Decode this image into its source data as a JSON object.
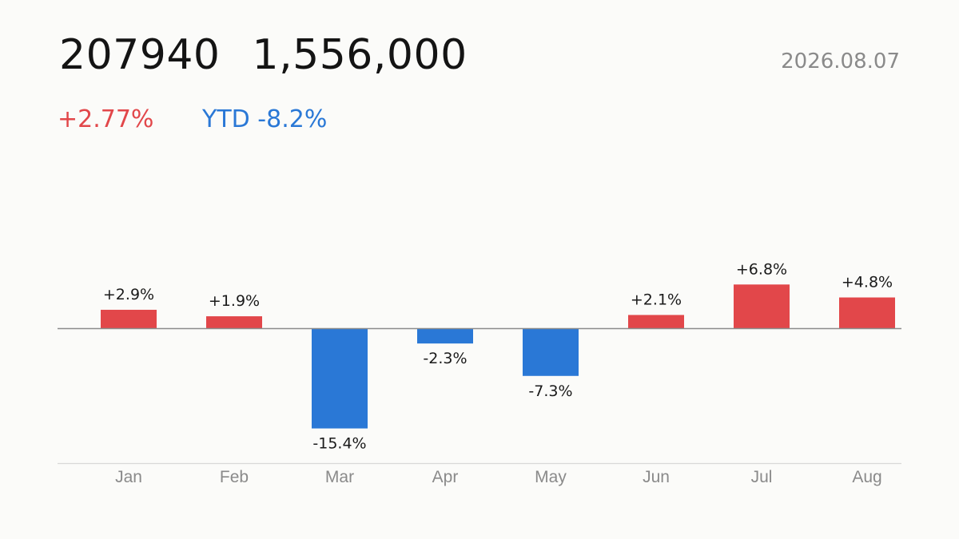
{
  "header": {
    "code": "207940",
    "price": "1,556,000",
    "date": "2026.08.07",
    "daily_change": "+2.77%",
    "ytd_change": "YTD -8.2%"
  },
  "colors": {
    "positive": "#e2474a",
    "negative": "#2a78d6",
    "zero_line": "#8c8c8c",
    "axis_line": "#d8d8d8"
  },
  "chart_data": {
    "type": "bar",
    "title": "",
    "xlabel": "",
    "ylabel": "",
    "categories": [
      "Jan",
      "Feb",
      "Mar",
      "Apr",
      "May",
      "Jun",
      "Jul",
      "Aug"
    ],
    "values": [
      2.9,
      1.9,
      -15.4,
      -2.3,
      -7.3,
      2.1,
      6.8,
      4.8
    ],
    "data_labels": [
      "+2.9%",
      "+1.9%",
      "-15.4%",
      "-2.3%",
      "-7.3%",
      "+2.1%",
      "+6.8%",
      "+4.8%"
    ],
    "grid": false
  }
}
